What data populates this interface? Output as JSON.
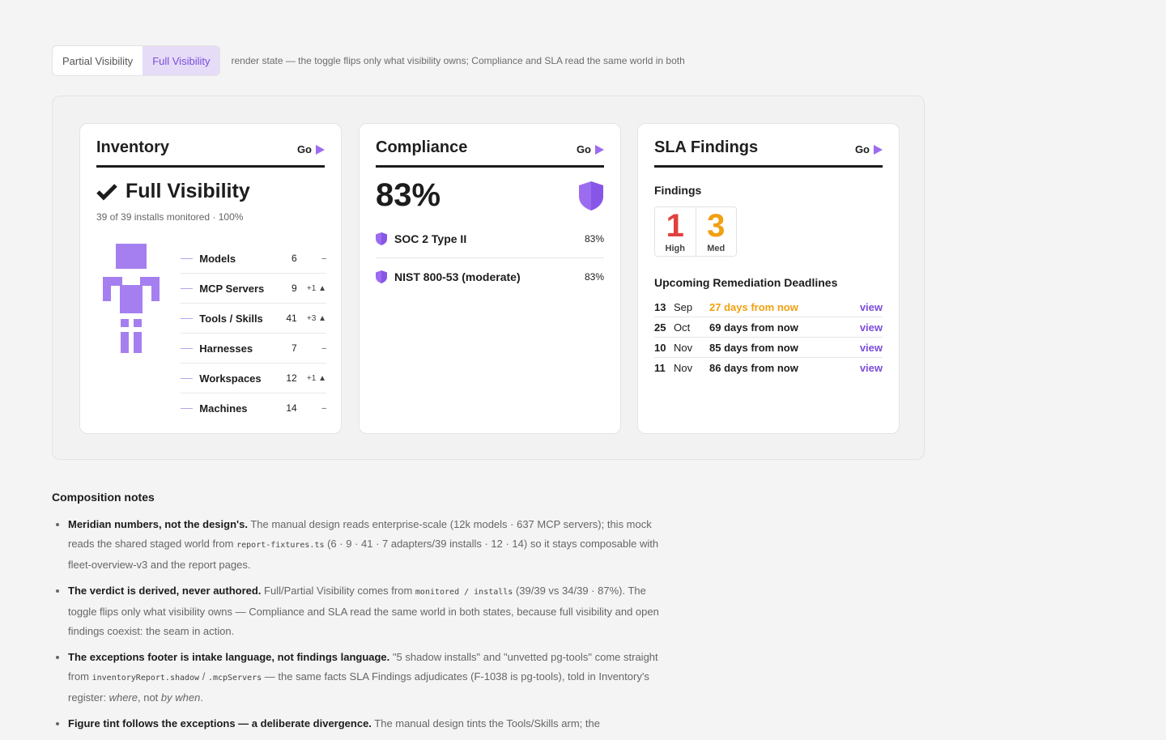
{
  "toggle": {
    "options": [
      "Partial Visibility",
      "Full Visibility"
    ],
    "active": "Full Visibility",
    "note": "render state — the toggle flips only what visibility owns; Compliance and SLA read the same world in both"
  },
  "go_label": "Go",
  "colors": {
    "accent": "#9b6cf0",
    "high": "#e0413f",
    "med": "#f0a010",
    "link": "#7c4ddb"
  },
  "inventory": {
    "title": "Inventory",
    "verdict": "Full Visibility",
    "verdict_icon": "check-icon",
    "sub": "39 of 39 installs monitored · 100%",
    "rows": [
      {
        "label": "Models",
        "value": "6",
        "delta": "–",
        "trend": ""
      },
      {
        "label": "MCP Servers",
        "value": "9",
        "delta": "+1",
        "trend": "▲"
      },
      {
        "label": "Tools / Skills",
        "value": "41",
        "delta": "+3",
        "trend": "▲"
      },
      {
        "label": "Harnesses",
        "value": "7",
        "delta": "–",
        "trend": ""
      },
      {
        "label": "Workspaces",
        "value": "12",
        "delta": "+1",
        "trend": "▲"
      },
      {
        "label": "Machines",
        "value": "14",
        "delta": "–",
        "trend": ""
      }
    ]
  },
  "compliance": {
    "title": "Compliance",
    "score": "83%",
    "frameworks": [
      {
        "name": "SOC 2 Type II",
        "value": "83%"
      },
      {
        "name": "NIST 800-53 (moderate)",
        "value": "83%"
      }
    ]
  },
  "sla": {
    "title": "SLA Findings",
    "findings_heading": "Findings",
    "counts": [
      {
        "num": "1",
        "label": "High"
      },
      {
        "num": "3",
        "label": "Med"
      }
    ],
    "deadlines_heading": "Upcoming Remediation Deadlines",
    "deadlines": [
      {
        "day": "13",
        "month": "Sep",
        "relative": "27 days from now",
        "link": "view"
      },
      {
        "day": "25",
        "month": "Oct",
        "relative": "69 days from now",
        "link": "view"
      },
      {
        "day": "10",
        "month": "Nov",
        "relative": "85 days from now",
        "link": "view"
      },
      {
        "day": "11",
        "month": "Nov",
        "relative": "86 days from now",
        "link": "view"
      }
    ]
  },
  "notes": {
    "heading": "Composition notes",
    "items": [
      {
        "lead": "Meridian numbers, not the design's.",
        "t1": " The manual design reads enterprise-scale (12k models · 637 MCP servers); this mock reads the shared staged world from ",
        "code1": "report-fixtures.ts",
        "t2": " (6 · 9 · 41 · 7 adapters/39 installs · 12 · 14) so it stays composable with fleet-overview-v3 and the report pages."
      },
      {
        "lead": "The verdict is derived, never authored.",
        "t1": " Full/Partial Visibility comes from ",
        "code1": "monitored / installs",
        "t2": " (39/39 vs 34/39 · 87%). The toggle flips only what visibility owns — Compliance and SLA read the same world in both states, because full visibility and open findings coexist: the seam in action."
      },
      {
        "lead": "The exceptions footer is intake language, not findings language.",
        "t1": " \"5 shadow installs\" and \"unvetted pg-tools\" come straight from ",
        "code1": "inventoryReport.shadow",
        "t2": " / ",
        "code2": ".mcpServers",
        "t3": " — the same facts SLA Findings adjudicates (F-1038 is pg-tools), told in Inventory's register: ",
        "em1": "where",
        "t4": ", not ",
        "em2": "by when",
        "t5": "."
      },
      {
        "lead": "Figure tint follows the exceptions — a deliberate divergence.",
        "t1": " The manual design tints the Tools/Skills arm; the"
      }
    ]
  }
}
